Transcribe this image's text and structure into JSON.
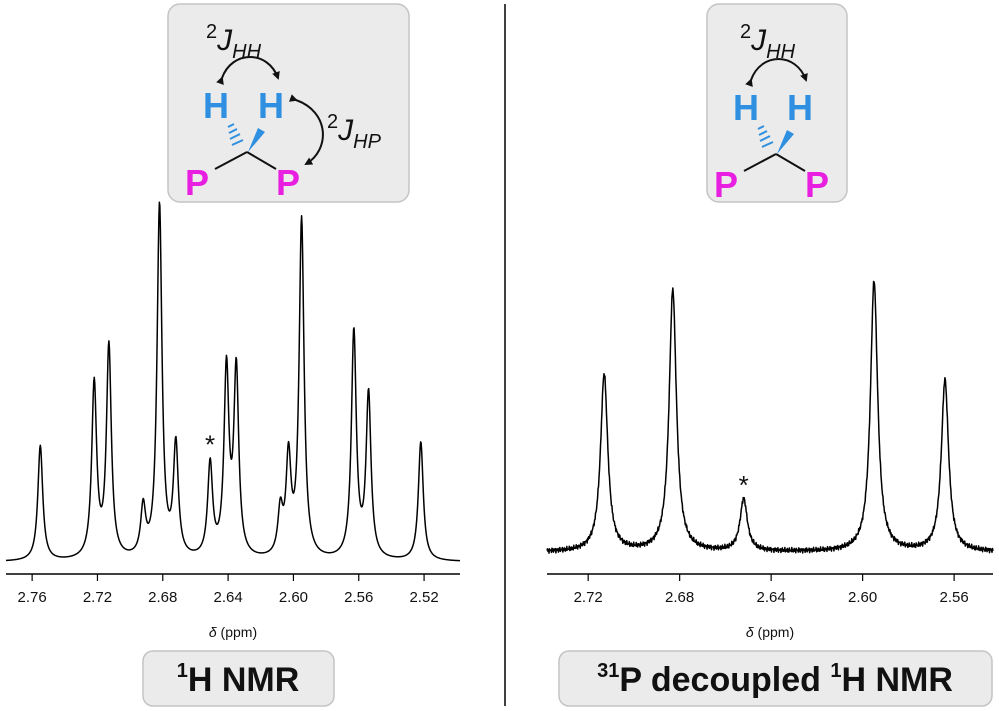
{
  "colors": {
    "hydrogen": "#2f8fe0",
    "phosphorus": "#e81fe0",
    "inset_bg": "#ebebeb",
    "line": "#000000"
  },
  "chart_data": [
    {
      "type": "line",
      "title": "1H NMR",
      "title_superscript": "1",
      "title_text": "H NMR",
      "xlabel_symbol": "δ",
      "xlabel_unit": "(ppm)",
      "xlim": [
        2.776,
        2.498
      ],
      "xaxis_reversed": true,
      "ticks": [
        "2.76",
        "2.72",
        "2.68",
        "2.64",
        "2.60",
        "2.56",
        "2.52"
      ],
      "tick_values": [
        2.76,
        2.72,
        2.68,
        2.64,
        2.6,
        2.56,
        2.52
      ],
      "baseline": 0.05,
      "ylim": [
        0,
        1.0
      ],
      "peaks": [
        {
          "ppm": 2.755,
          "height": 0.36
        },
        {
          "ppm": 2.722,
          "height": 0.52
        },
        {
          "ppm": 2.713,
          "height": 0.62
        },
        {
          "ppm": 2.692,
          "height": 0.18
        },
        {
          "ppm": 2.682,
          "height": 1.0
        },
        {
          "ppm": 2.672,
          "height": 0.35
        },
        {
          "ppm": 2.651,
          "height": 0.3
        },
        {
          "ppm": 2.641,
          "height": 0.55
        },
        {
          "ppm": 2.635,
          "height": 0.55
        },
        {
          "ppm": 2.608,
          "height": 0.17
        },
        {
          "ppm": 2.603,
          "height": 0.31
        },
        {
          "ppm": 2.595,
          "height": 0.96
        },
        {
          "ppm": 2.563,
          "height": 0.66
        },
        {
          "ppm": 2.554,
          "height": 0.49
        },
        {
          "ppm": 2.522,
          "height": 0.37
        }
      ],
      "annotation": {
        "text": "*",
        "ppm": 2.651
      },
      "inset": {
        "j_hh": {
          "superscript": "2",
          "symbol": "J",
          "subscript": "HH"
        },
        "j_hp": {
          "superscript": "2",
          "symbol": "J",
          "subscript": "HP"
        },
        "atoms": {
          "h": "H",
          "p": "P"
        }
      }
    },
    {
      "type": "line",
      "title": "31P decoupled 1H NMR",
      "title_sup1": "31",
      "title_mid": "P decoupled ",
      "title_sup2": "1",
      "title_end": "H NMR",
      "xlabel_symbol": "δ",
      "xlabel_unit": "(ppm)",
      "xlim": [
        2.738,
        2.543
      ],
      "xaxis_reversed": true,
      "ticks": [
        "2.72",
        "2.68",
        "2.64",
        "2.60",
        "2.56"
      ],
      "tick_values": [
        2.72,
        2.68,
        2.64,
        2.6,
        2.56
      ],
      "baseline": 0.05,
      "ylim": [
        0,
        1.0
      ],
      "peaks": [
        {
          "ppm": 2.713,
          "height": 0.66
        },
        {
          "ppm": 2.683,
          "height": 0.95
        },
        {
          "ppm": 2.652,
          "height": 0.23
        },
        {
          "ppm": 2.595,
          "height": 0.98
        },
        {
          "ppm": 2.564,
          "height": 0.64
        }
      ],
      "annotation": {
        "text": "*",
        "ppm": 2.652
      },
      "inset": {
        "j_hh": {
          "superscript": "2",
          "symbol": "J",
          "subscript": "HH"
        },
        "atoms": {
          "h": "H",
          "p": "P"
        }
      }
    }
  ]
}
